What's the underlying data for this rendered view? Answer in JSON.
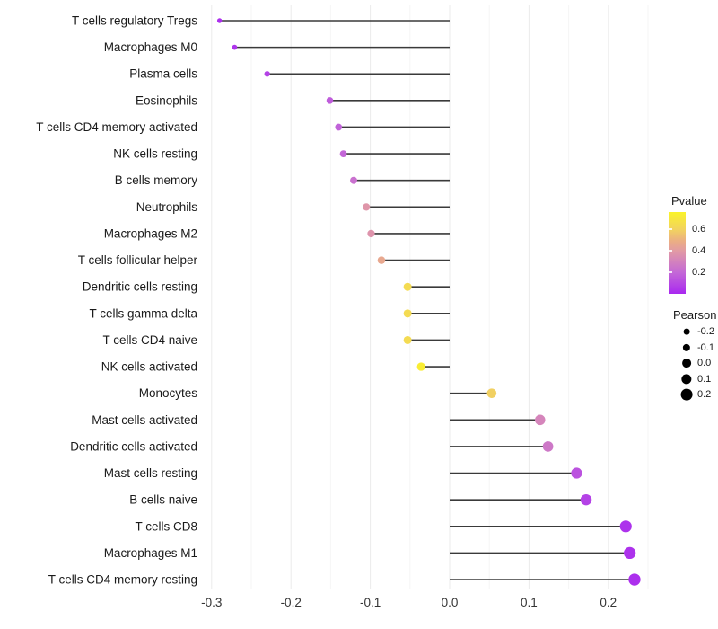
{
  "chart_data": {
    "type": "lollipop",
    "title": "",
    "xlabel": "",
    "ylabel": "",
    "xlim": [
      -0.335,
      0.255
    ],
    "x_major_ticks": [
      -0.3,
      -0.2,
      -0.1,
      0.0,
      0.1,
      0.2
    ],
    "x_tick_labels": [
      "-0.3",
      "-0.2",
      "-0.1",
      "0.0",
      "0.1",
      "0.2"
    ],
    "x_minor_ticks": [
      -0.25,
      -0.15,
      -0.05,
      0.05,
      0.15,
      0.25
    ],
    "grid": "vertical-only",
    "baseline_x": 0.0,
    "points": [
      {
        "label": "T cells regulatory  Tregs",
        "pearson": -0.29,
        "pvalue": 0.02
      },
      {
        "label": "Macrophages M0",
        "pearson": -0.271,
        "pvalue": 0.04
      },
      {
        "label": "Plasma cells",
        "pearson": -0.23,
        "pvalue": 0.08
      },
      {
        "label": "Eosinophils",
        "pearson": -0.151,
        "pvalue": 0.16
      },
      {
        "label": "T cells CD4 memory activated",
        "pearson": -0.14,
        "pvalue": 0.18
      },
      {
        "label": "NK cells resting",
        "pearson": -0.134,
        "pvalue": 0.19
      },
      {
        "label": "B cells memory",
        "pearson": -0.121,
        "pvalue": 0.23
      },
      {
        "label": "Neutrophils",
        "pearson": -0.105,
        "pvalue": 0.38
      },
      {
        "label": "Macrophages M2",
        "pearson": -0.099,
        "pvalue": 0.37
      },
      {
        "label": "T cells follicular helper",
        "pearson": -0.086,
        "pvalue": 0.46
      },
      {
        "label": "Dendritic cells resting",
        "pearson": -0.053,
        "pvalue": 0.64
      },
      {
        "label": "T cells gamma delta",
        "pearson": -0.053,
        "pvalue": 0.64
      },
      {
        "label": "T cells CD4 naive",
        "pearson": -0.053,
        "pvalue": 0.64
      },
      {
        "label": "NK cells activated",
        "pearson": -0.036,
        "pvalue": 0.73
      },
      {
        "label": "Monocytes",
        "pearson": 0.053,
        "pvalue": 0.59
      },
      {
        "label": "Mast cells activated",
        "pearson": 0.114,
        "pvalue": 0.31
      },
      {
        "label": "Dendritic cells activated",
        "pearson": 0.124,
        "pvalue": 0.26
      },
      {
        "label": "Mast cells resting",
        "pearson": 0.16,
        "pvalue": 0.13
      },
      {
        "label": "B cells naive",
        "pearson": 0.172,
        "pvalue": 0.08
      },
      {
        "label": "T cells CD8",
        "pearson": 0.222,
        "pvalue": 0.03
      },
      {
        "label": "Macrophages M1",
        "pearson": 0.227,
        "pvalue": 0.03
      },
      {
        "label": "T cells CD4 memory resting",
        "pearson": 0.233,
        "pvalue": 0.02
      }
    ],
    "legend": {
      "pvalue": {
        "title": "Pvalue",
        "range": [
          0,
          0.76
        ],
        "tick_values": [
          0.6,
          0.4,
          0.2
        ],
        "tick_labels": [
          "0.6",
          "0.4",
          "0.2"
        ],
        "gradient_stops": [
          {
            "p": 0.0,
            "color": "#A928F0"
          },
          {
            "p": 0.2,
            "color": "#C469D6"
          },
          {
            "p": 0.4,
            "color": "#E29BA4"
          },
          {
            "p": 0.49,
            "color": "#EBAE84"
          },
          {
            "p": 0.6,
            "color": "#F2D35F"
          },
          {
            "p": 0.76,
            "color": "#FAF32A"
          }
        ]
      },
      "pearson": {
        "title": "Pearson",
        "size_values": [
          -0.2,
          -0.1,
          0.0,
          0.1,
          0.2
        ],
        "size_labels": [
          "-0.2",
          "-0.1",
          "0.0",
          "0.1",
          "0.2"
        ],
        "dot_color": "#000000"
      }
    },
    "colors": {
      "segment": "#3a3a3a",
      "grid_major": "#ebebeb",
      "grid_minor": "#f6f6f6",
      "axis_text": "#333333",
      "category_text": "#1a1a1a"
    }
  }
}
